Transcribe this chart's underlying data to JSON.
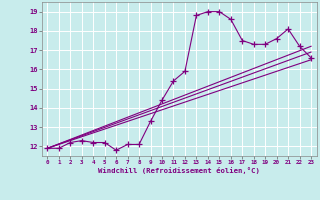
{
  "title": "",
  "xlabel": "Windchill (Refroidissement éolien,°C)",
  "bg_color": "#c8ecec",
  "grid_color": "#b8d8d8",
  "line_color": "#800080",
  "xlim": [
    -0.5,
    23.5
  ],
  "ylim": [
    11.5,
    19.5
  ],
  "xticks": [
    0,
    1,
    2,
    3,
    4,
    5,
    6,
    7,
    8,
    9,
    10,
    11,
    12,
    13,
    14,
    15,
    16,
    17,
    18,
    19,
    20,
    21,
    22,
    23
  ],
  "yticks": [
    12,
    13,
    14,
    15,
    16,
    17,
    18,
    19
  ],
  "main_curve_x": [
    0,
    1,
    2,
    3,
    4,
    5,
    6,
    7,
    8,
    9,
    10,
    11,
    12,
    13,
    14,
    15,
    16,
    17,
    18,
    19,
    20,
    21,
    22,
    23
  ],
  "main_curve_y": [
    11.9,
    11.9,
    12.2,
    12.3,
    12.2,
    12.2,
    11.8,
    12.1,
    12.1,
    13.3,
    14.4,
    15.4,
    15.9,
    18.8,
    19.0,
    19.0,
    18.6,
    17.5,
    17.3,
    17.3,
    17.6,
    18.1,
    17.2,
    16.6
  ],
  "line1_x": [
    0,
    23
  ],
  "line1_y": [
    11.9,
    16.5
  ],
  "line2_x": [
    0,
    23
  ],
  "line2_y": [
    11.9,
    17.2
  ],
  "line3_x": [
    0,
    23
  ],
  "line3_y": [
    11.9,
    16.9
  ]
}
